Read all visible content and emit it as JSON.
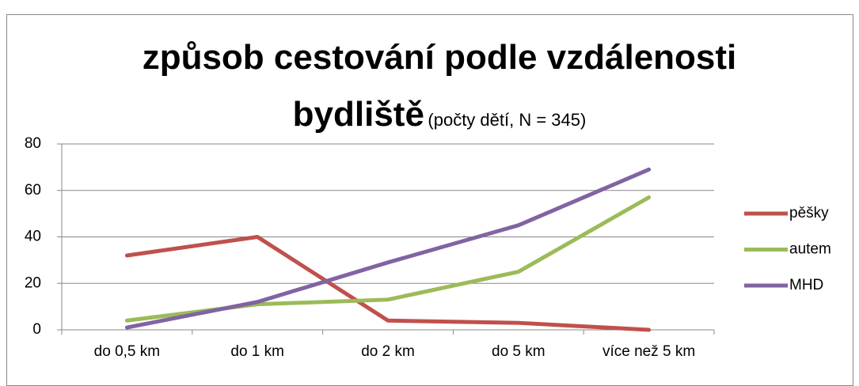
{
  "chart_data": {
    "type": "line",
    "title": "způsob cestování podle vzdálenosti bydliště",
    "subtitle": "(počty dětí, N = 345)",
    "categories": [
      "do 0,5 km",
      "do 1 km",
      "do 2 km",
      "do 5 km",
      "více než 5 km"
    ],
    "series": [
      {
        "name": "pěšky",
        "color": "#c0504d",
        "values": [
          32,
          40,
          4,
          3,
          0
        ]
      },
      {
        "name": "autem",
        "color": "#9bbb59",
        "values": [
          4,
          11,
          13,
          25,
          57
        ]
      },
      {
        "name": "MHD",
        "color": "#8064a2",
        "values": [
          1,
          12,
          29,
          45,
          69
        ]
      }
    ],
    "ylim": [
      0,
      80
    ],
    "yticks": [
      0,
      20,
      40,
      60,
      80
    ],
    "grid": true,
    "legend": "right"
  }
}
